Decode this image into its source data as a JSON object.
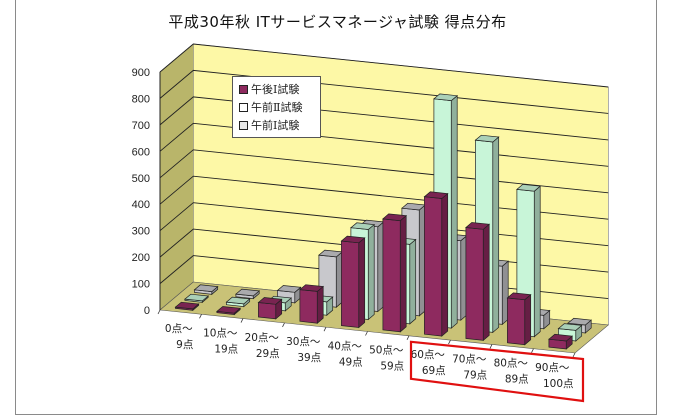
{
  "title": "平成30年秋 ITサービスマネージャ試験 得点分布",
  "legend": [
    {
      "label": "午後Ⅰ試験",
      "color": "#8e2a5f"
    },
    {
      "label": "午前Ⅱ試験",
      "color": "#c8f5d8"
    },
    {
      "label": "午前Ⅰ試験",
      "color": "#c8c8cc"
    }
  ],
  "highlight": {
    "from_index": 6,
    "to_index": 9,
    "color": "#e01010"
  },
  "chart_data": {
    "type": "bar",
    "title": "平成30年秋 ITサービスマネージャ試験 得点分布",
    "xlabel": "",
    "ylabel": "",
    "ylim": [
      0,
      900
    ],
    "yticks": [
      0,
      100,
      200,
      300,
      400,
      500,
      600,
      700,
      800,
      900
    ],
    "grid": true,
    "legend_position": "upper-left-inside",
    "style": "3d-clustered-column",
    "categories": [
      [
        "0点～",
        "9点"
      ],
      [
        "10点～",
        "19点"
      ],
      [
        "20点～",
        "29点"
      ],
      [
        "30点～",
        "39点"
      ],
      [
        "40点～",
        "49点"
      ],
      [
        "50点～",
        "59点"
      ],
      [
        "60点～",
        "69点"
      ],
      [
        "70点～",
        "79点"
      ],
      [
        "80点～",
        "89点"
      ],
      [
        "90点～",
        "100点"
      ]
    ],
    "series": [
      {
        "name": "午後Ⅰ試験",
        "color": "#8e2a5f",
        "values": [
          5,
          5,
          55,
          120,
          320,
          420,
          520,
          420,
          170,
          30
        ]
      },
      {
        "name": "午前Ⅱ試験",
        "color": "#c8f5d8",
        "values": [
          5,
          10,
          30,
          50,
          340,
          300,
          860,
          720,
          550,
          40
        ]
      },
      {
        "name": "午前Ⅰ試験",
        "color": "#c8c8cc",
        "values": [
          10,
          10,
          40,
          190,
          320,
          400,
          300,
          220,
          50,
          30
        ]
      }
    ]
  }
}
